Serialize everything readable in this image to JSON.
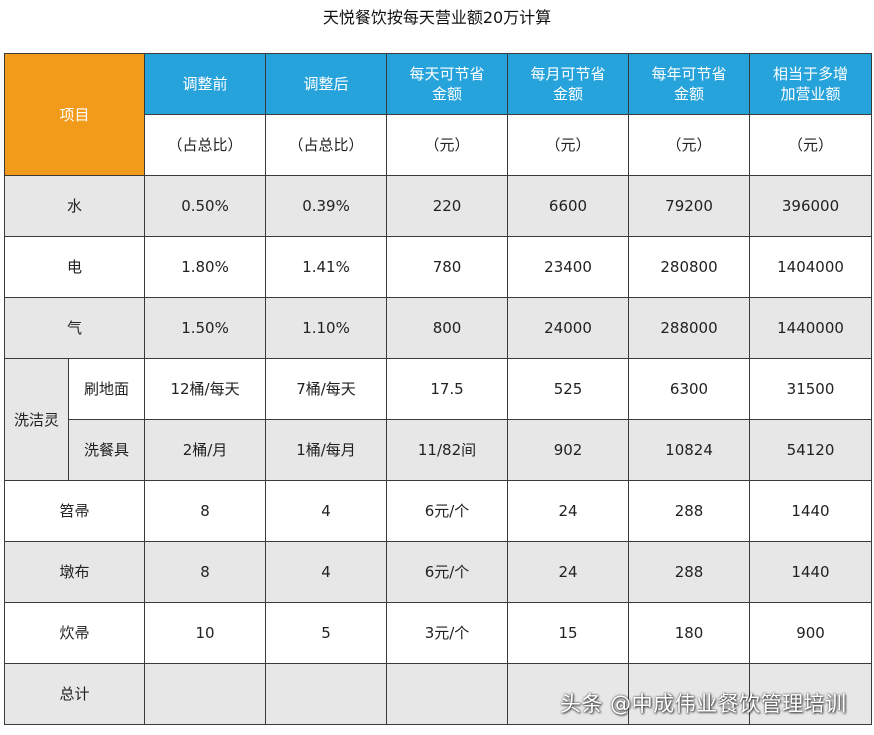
{
  "title": "天悦餐饮按每天营业额20万计算",
  "header": {
    "item": "项目",
    "cols": [
      "调整前",
      "调整后",
      "每天可节省\n金额",
      "每月可节省\n金额",
      "每年可节省\n金额",
      "相当于多增\n加营业额"
    ],
    "units": [
      "（占总比）",
      "（占总比）",
      "（元）",
      "（元）",
      "（元）",
      "（元）"
    ]
  },
  "rows": [
    {
      "name": "水",
      "values": [
        "0.50%",
        "0.39%",
        "220",
        "6600",
        "79200",
        "396000"
      ]
    },
    {
      "name": "电",
      "values": [
        "1.80%",
        "1.41%",
        "780",
        "23400",
        "280800",
        "1404000"
      ]
    },
    {
      "name": "气",
      "values": [
        "1.50%",
        "1.10%",
        "800",
        "24000",
        "288000",
        "1440000"
      ]
    }
  ],
  "wash": {
    "group": "洗洁灵",
    "rows": [
      {
        "name": "刷地面",
        "values": [
          "12桶/每天",
          "7桶/每天",
          "17.5",
          "525",
          "6300",
          "31500"
        ]
      },
      {
        "name": "洗餐具",
        "values": [
          "2桶/月",
          "1桶/每月",
          "11/82间",
          "902",
          "10824",
          "54120"
        ]
      }
    ]
  },
  "rows2": [
    {
      "name": "笤帚",
      "values": [
        "8",
        "4",
        "6元/个",
        "24",
        "288",
        "1440"
      ]
    },
    {
      "name": "墩布",
      "values": [
        "8",
        "4",
        "6元/个",
        "24",
        "288",
        "1440"
      ]
    },
    {
      "name": "炊帚",
      "values": [
        "10",
        "5",
        "3元/个",
        "15",
        "180",
        "900"
      ]
    }
  ],
  "total": {
    "name": "总计"
  },
  "watermark": "头条 @中成伟业餐饮管理培训"
}
